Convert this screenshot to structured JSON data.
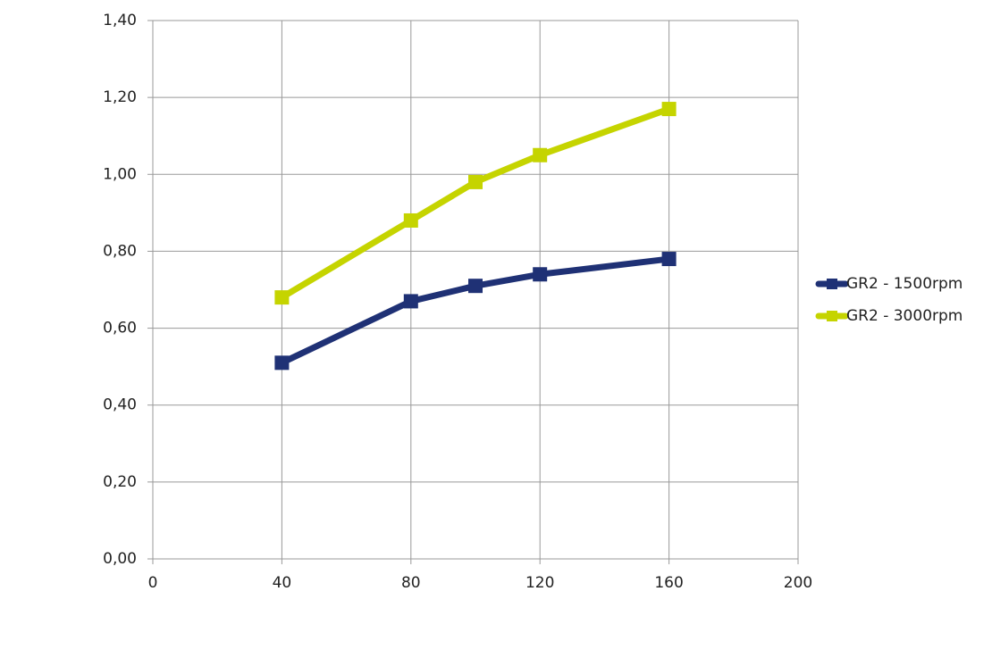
{
  "chart_data": {
    "type": "line",
    "series": [
      {
        "name": "GR2 - 1500rpm",
        "color": "#1f3175",
        "x": [
          40,
          80,
          100,
          120,
          160
        ],
        "values": [
          0.51,
          0.67,
          0.71,
          0.74,
          0.78
        ]
      },
      {
        "name": "GR2 - 3000rpm",
        "color": "#c5d400",
        "x": [
          40,
          80,
          100,
          120,
          160
        ],
        "values": [
          0.68,
          0.88,
          0.98,
          1.05,
          1.17
        ]
      }
    ],
    "xlim": [
      0,
      200
    ],
    "xticks": [
      0,
      40,
      80,
      120,
      160,
      200
    ],
    "ylim": [
      0,
      1.4
    ],
    "yticks": [
      {
        "value": 0,
        "label": "0,00"
      },
      {
        "value": 0.2,
        "label": "0,20"
      },
      {
        "value": 0.4,
        "label": "0,40"
      },
      {
        "value": 0.6,
        "label": "0,60"
      },
      {
        "value": 0.8,
        "label": "0,80"
      },
      {
        "value": 1.0,
        "label": "1,00"
      },
      {
        "value": 1.2,
        "label": "1,20"
      },
      {
        "value": 1.4,
        "label": "1,40"
      }
    ],
    "grid": true,
    "legend": "right"
  }
}
